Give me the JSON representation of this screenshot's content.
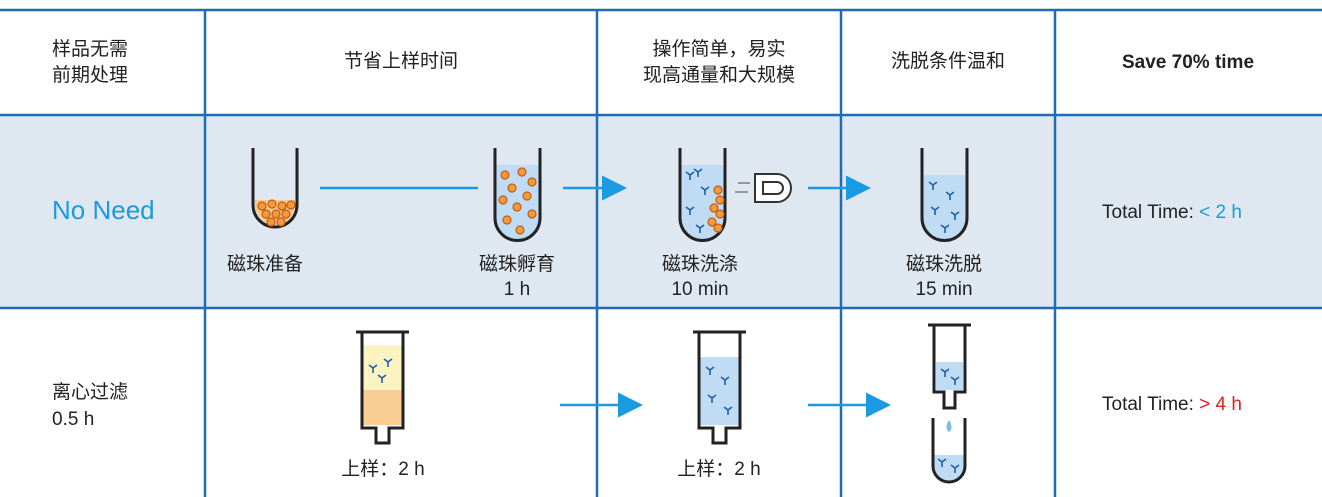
{
  "header": {
    "cells": [
      [
        "样品无需",
        "前期处理"
      ],
      [
        "节省上样时间"
      ],
      [
        "操作简单，易实",
        "现高通量和大规模"
      ],
      [
        "洗脱条件温和"
      ],
      [
        "Save 70% time"
      ]
    ]
  },
  "rows": [
    {
      "label": [
        "No Need"
      ],
      "steps": [
        {
          "label": "磁珠准备"
        },
        {
          "label": "磁珠孵育",
          "time": "1 h"
        },
        {
          "label": "磁珠洗涤",
          "time": "10 min"
        },
        {
          "label": "磁珠洗脱",
          "time": "15 min"
        }
      ],
      "total_label": "Total Time: ",
      "total_value": "< 2 h"
    },
    {
      "label": [
        "离心过滤",
        "0.5 h"
      ],
      "steps": [
        {
          "label": "上样：2 h"
        },
        {
          "label": "上样：2 h"
        }
      ],
      "total_label": "Total Time: ",
      "total_value": "> 4 h"
    }
  ]
}
